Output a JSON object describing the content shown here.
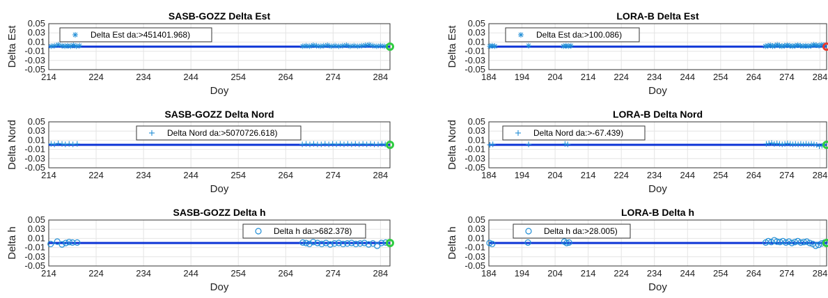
{
  "chart_data": [
    {
      "type": "scatter",
      "title": "SASB-GOZZ Delta Est",
      "xlabel": "Doy",
      "ylabel": "Delta Est",
      "xlim": [
        214,
        286
      ],
      "ylim": [
        -0.05,
        0.05
      ],
      "xticks": [
        214,
        224,
        234,
        244,
        254,
        264,
        274,
        284
      ],
      "yticks": [
        "0.05",
        "0.03",
        "0.01",
        "-0.01",
        "-0.03",
        "-0.05"
      ],
      "grid": true,
      "legend": "top-left",
      "marker": "asterisk",
      "end_marker_color": "#2ecc40",
      "series": [
        {
          "name": "Delta Est da:>451401.968)",
          "x": [
            214.5,
            215.2,
            216,
            216.8,
            217.4,
            218,
            218.6,
            219.2,
            219.8,
            220.5,
            267.6,
            268.3,
            269,
            269.8,
            270.5,
            271.3,
            272,
            272.8,
            273.6,
            274.4,
            275.2,
            276,
            276.8,
            277.6,
            278.4,
            279.2,
            280,
            280.8,
            281.6,
            282.4,
            283.2,
            284,
            284.8
          ],
          "y": [
            0.001,
            0.002,
            0.004,
            0.002,
            0.001,
            0.002,
            0.001,
            0.003,
            0.001,
            0.002,
            0.001,
            0.002,
            0.001,
            0.003,
            0.002,
            0.001,
            0.002,
            0.003,
            0.001,
            0.002,
            0.001,
            0.002,
            0.003,
            0.001,
            0.002,
            0.001,
            0.002,
            0.003,
            0.004,
            0.002,
            0.001,
            0.002,
            0.001
          ]
        }
      ]
    },
    {
      "type": "scatter",
      "title": "LORA-B Delta Est",
      "xlabel": "Doy",
      "ylabel": "Delta Est",
      "xlim": [
        184,
        286
      ],
      "ylim": [
        -0.05,
        0.05
      ],
      "xticks": [
        184,
        194,
        204,
        214,
        224,
        234,
        244,
        254,
        264,
        274,
        284
      ],
      "yticks": [
        "0.05",
        "0.03",
        "0.01",
        "-0.01",
        "-0.03",
        "-0.05"
      ],
      "grid": true,
      "legend": "top-left",
      "marker": "asterisk",
      "end_marker_color": "#e8392d",
      "series": [
        {
          "name": "Delta Est da:>100.086)",
          "x": [
            184.3,
            185,
            185.8,
            196,
            206.5,
            207.3,
            208,
            208.8,
            267.5,
            268.3,
            269,
            269.7,
            270.4,
            271.1,
            271.8,
            272.5,
            273.3,
            274.1,
            274.9,
            275.7,
            276.5,
            277.3,
            278.1,
            278.9,
            279.7,
            280.5,
            281.3,
            282.1,
            282.9,
            283.7,
            284.5,
            285.3
          ],
          "y": [
            0.001,
            0.002,
            0.001,
            0.002,
            0.001,
            0.002,
            0.001,
            0.002,
            0.001,
            0.002,
            0.003,
            0.001,
            0.002,
            0.004,
            0.002,
            0.001,
            0.002,
            0.003,
            0.002,
            0.001,
            0.002,
            0.003,
            0.002,
            0.001,
            0.002,
            0.001,
            0.002,
            0.004,
            0.003,
            0.002,
            0.004,
            0.003
          ]
        }
      ]
    },
    {
      "type": "scatter",
      "title": "SASB-GOZZ Delta Nord",
      "xlabel": "Doy",
      "ylabel": "Delta Nord",
      "xlim": [
        214,
        286
      ],
      "ylim": [
        -0.05,
        0.05
      ],
      "xticks": [
        214,
        224,
        234,
        244,
        254,
        264,
        274,
        284
      ],
      "yticks": [
        "0.05",
        "0.03",
        "0.01",
        "-0.01",
        "-0.03",
        "-0.05"
      ],
      "grid": true,
      "legend": "top-center",
      "marker": "plus",
      "end_marker_color": "#2ecc40",
      "series": [
        {
          "name": "Delta Nord da:>5070726.618)",
          "x": [
            214.5,
            215.2,
            216,
            216.8,
            217.5,
            218.3,
            219.1,
            220,
            267.5,
            268.3,
            269.1,
            269.9,
            270.7,
            271.5,
            272.3,
            273.1,
            273.9,
            274.7,
            275.5,
            276.3,
            277.1,
            277.9,
            278.7,
            279.5,
            280.3,
            281.1,
            281.9,
            282.7,
            283.5,
            284.3,
            285
          ],
          "y": [
            0.002,
            0.001,
            0.003,
            0.002,
            0.001,
            0.002,
            0.001,
            0.002,
            0.001,
            0.002,
            0.001,
            0.002,
            0.001,
            0.001,
            0.002,
            0.001,
            0.002,
            0.001,
            0.002,
            0.001,
            0.002,
            0.001,
            0.002,
            0.001,
            0.002,
            0.001,
            0.002,
            0.001,
            0.001,
            0.002,
            0.001
          ]
        }
      ]
    },
    {
      "type": "scatter",
      "title": "LORA-B Delta Nord",
      "xlabel": "Doy",
      "ylabel": "Delta Nord",
      "xlim": [
        184,
        286
      ],
      "ylim": [
        -0.05,
        0.05
      ],
      "xticks": [
        184,
        194,
        204,
        214,
        224,
        234,
        244,
        254,
        264,
        274,
        284
      ],
      "yticks": [
        "0.05",
        "0.03",
        "0.01",
        "-0.01",
        "-0.03",
        "-0.05"
      ],
      "grid": true,
      "legend": "top-left",
      "marker": "plus",
      "end_marker_color": "#2ecc40",
      "series": [
        {
          "name": "Delta Nord da:>-67.439)",
          "x": [
            184.3,
            185.2,
            196,
            207,
            207.8,
            267.8,
            268.6,
            269.4,
            270.2,
            271,
            271.8,
            272.6,
            273.4,
            274.2,
            275,
            275.8,
            276.6,
            277.4,
            278.2,
            279,
            279.8,
            280.6,
            281.4,
            282.2,
            283,
            283.8,
            284.6,
            285.4
          ],
          "y": [
            0.0,
            0.001,
            0.001,
            0.002,
            0.001,
            0.002,
            0.003,
            0.004,
            0.002,
            0.003,
            0.002,
            0.001,
            0.002,
            0.003,
            0.002,
            0.001,
            0.002,
            0.001,
            0.002,
            0.001,
            0.002,
            0.001,
            0.002,
            0.001,
            0.0,
            -0.003,
            -0.002,
            0.001
          ]
        }
      ]
    },
    {
      "type": "scatter",
      "title": "SASB-GOZZ Delta h",
      "xlabel": "Doy",
      "ylabel": "Delta h",
      "xlim": [
        214,
        286
      ],
      "ylim": [
        -0.05,
        0.05
      ],
      "xticks": [
        214,
        224,
        234,
        244,
        254,
        264,
        274,
        284
      ],
      "yticks": [
        "0.05",
        "0.03",
        "0.01",
        "-0.01",
        "-0.03",
        "-0.05"
      ],
      "grid": true,
      "legend": "top-right",
      "marker": "circle",
      "end_marker_color": "#2ecc40",
      "series": [
        {
          "name": "Delta h da:>682.378)",
          "x": [
            214.4,
            215.8,
            216.8,
            217.6,
            218.3,
            219,
            220,
            267.6,
            268.3,
            269,
            269.8,
            270.7,
            271.6,
            272.5,
            273.4,
            274.3,
            275.2,
            276.1,
            277,
            277.9,
            278.8,
            279.7,
            280.6,
            281.5,
            282.4,
            283.3,
            284.2,
            285.1
          ],
          "y": [
            -0.002,
            0.003,
            -0.003,
            0.0,
            0.002,
            0.001,
            0.001,
            0.001,
            0.0,
            -0.002,
            0.002,
            0.0,
            -0.002,
            0.0,
            -0.003,
            -0.001,
            0.0,
            -0.002,
            -0.001,
            0.0,
            -0.002,
            -0.001,
            0.0,
            -0.003,
            -0.001,
            -0.006,
            0.0,
            0.001
          ]
        }
      ]
    },
    {
      "type": "scatter",
      "title": "LORA-B Delta h",
      "xlabel": "Doy",
      "ylabel": "Delta h",
      "xlim": [
        184,
        286
      ],
      "ylim": [
        -0.05,
        0.05
      ],
      "xticks": [
        184,
        194,
        204,
        214,
        224,
        234,
        244,
        254,
        264,
        274,
        284
      ],
      "yticks": [
        "0.05",
        "0.03",
        "0.01",
        "-0.01",
        "-0.03",
        "-0.05"
      ],
      "grid": true,
      "legend": "top-left",
      "marker": "circle",
      "end_marker_color": "#2ecc40",
      "series": [
        {
          "name": "Delta h da:>28.005)",
          "x": [
            184.2,
            185,
            195.8,
            206.8,
            207.5,
            208.2,
            267.6,
            268.4,
            269.3,
            270.2,
            271,
            271.9,
            272.8,
            273.7,
            274.6,
            275.5,
            276.4,
            277.3,
            278.2,
            279.1,
            280,
            280.9,
            281.8,
            282.7,
            283.6,
            284.5,
            285.4
          ],
          "y": [
            0.0,
            -0.002,
            0.001,
            0.003,
            0.0,
            0.001,
            0.001,
            0.004,
            0.002,
            0.006,
            0.003,
            0.002,
            0.004,
            0.001,
            0.003,
            0.0,
            0.002,
            0.004,
            0.001,
            0.002,
            0.003,
            0.0,
            -0.002,
            -0.006,
            -0.004,
            -0.001,
            0.001
          ]
        }
      ]
    }
  ]
}
